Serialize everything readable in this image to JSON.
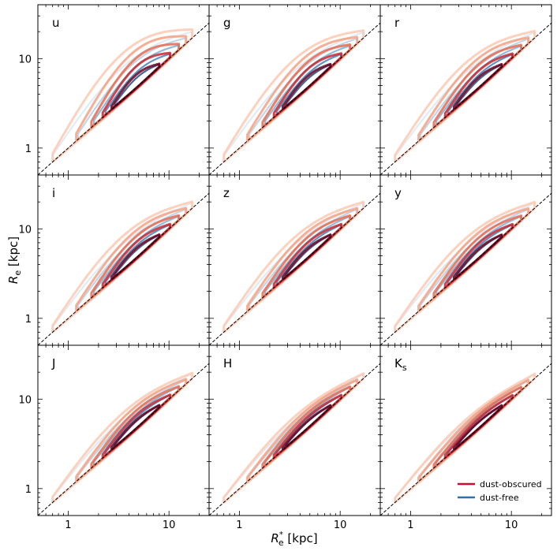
{
  "chart_data": {
    "type": "contour-grid",
    "rows": 3,
    "cols": 3,
    "xlabel": {
      "main": "R",
      "sub": "e",
      "sup": "*",
      "unit": " [kpc]"
    },
    "ylabel": {
      "main": "R",
      "sub": "e",
      "unit": " [kpc]"
    },
    "xscale": "log",
    "yscale": "log",
    "xlim": [
      0.5,
      25
    ],
    "ylim": [
      0.5,
      40
    ],
    "xticks": [
      1,
      10
    ],
    "yticks": [
      1,
      10
    ],
    "xtick_labels": [
      "1",
      "10"
    ],
    "ytick_labels": [
      "1",
      "10"
    ],
    "reference_line": "y = x (dashed)",
    "panels": [
      {
        "label": "u",
        "spread": 2.1,
        "red_offset": 1.5
      },
      {
        "label": "g",
        "spread": 1.9,
        "red_offset": 1.4
      },
      {
        "label": "r",
        "spread": 1.8,
        "red_offset": 1.35
      },
      {
        "label": "i",
        "spread": 1.75,
        "red_offset": 1.3
      },
      {
        "label": "z",
        "spread": 1.7,
        "red_offset": 1.28
      },
      {
        "label": "y",
        "spread": 1.7,
        "red_offset": 1.25
      },
      {
        "label": "J",
        "spread": 1.6,
        "red_offset": 1.2
      },
      {
        "label": "H",
        "spread": 1.5,
        "red_offset": 1.15
      },
      {
        "label": "Ks",
        "label_main": "K",
        "label_sub": "s",
        "spread": 1.45,
        "red_offset": 1.1
      }
    ],
    "series": [
      {
        "name": "dust-obscured",
        "color": "#c8102e",
        "levels": [
          "#fcc9b3",
          "#f4a081",
          "#e6694f",
          "#c8262f",
          "#67001f"
        ]
      },
      {
        "name": "dust-free",
        "color": "#2a72b0",
        "levels": [
          "#d6e5f2",
          "#a9c9e3",
          "#6aa5d0",
          "#2a72b0",
          "#0a3470"
        ]
      }
    ],
    "legend": {
      "position": "lower-right",
      "entries": [
        "dust-obscured",
        "dust-free"
      ]
    }
  }
}
